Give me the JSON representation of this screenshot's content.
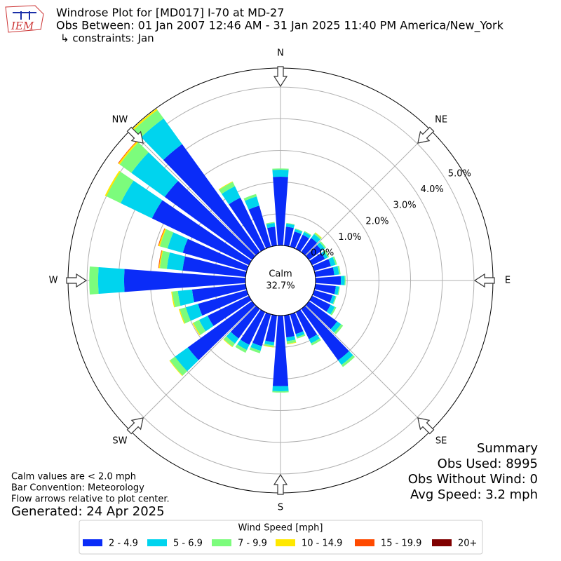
{
  "chart_data": {
    "type": "windrose",
    "title": "Windrose Plot for [MD017] I-70 at MD-27",
    "subtitle": "Obs Between: 01 Jan 2007 12:46 AM - 31 Jan 2025 11:40 PM America/New_York",
    "constraints": "↳ constraints: Jan",
    "compass_labels": [
      "N",
      "NE",
      "E",
      "SE",
      "S",
      "SW",
      "W",
      "NW"
    ],
    "x": [
      0,
      10,
      20,
      30,
      40,
      50,
      60,
      70,
      80,
      90,
      100,
      110,
      120,
      130,
      140,
      150,
      160,
      170,
      180,
      190,
      200,
      210,
      220,
      230,
      240,
      250,
      260,
      270,
      280,
      290,
      300,
      310,
      320,
      330,
      340,
      350
    ],
    "rlim": [
      0,
      5.6
    ],
    "rticks": [
      {
        "value": 0,
        "label": "0.0%"
      },
      {
        "value": 1,
        "label": "1.0%"
      },
      {
        "value": 2,
        "label": "2.0%"
      },
      {
        "value": 3,
        "label": "3.0%"
      },
      {
        "value": 4,
        "label": "4.0%"
      },
      {
        "value": 5,
        "label": "5.0%"
      }
    ],
    "calm": {
      "label": "Calm",
      "value": 32.7,
      "value_label": "32.7%"
    },
    "legend_title": "Wind Speed [mph]",
    "series": [
      {
        "name": "2 - 4.9",
        "color": "#0a2cf8",
        "values": [
          2.17,
          0.6,
          0.5,
          0.5,
          0.55,
          0.5,
          0.45,
          0.55,
          0.6,
          0.8,
          0.65,
          0.6,
          0.65,
          1.1,
          2.0,
          0.95,
          0.65,
          0.7,
          2.23,
          0.85,
          1.05,
          1.15,
          1.15,
          2.5,
          1.45,
          1.6,
          1.7,
          3.83,
          2.0,
          2.1,
          3.4,
          3.4,
          4.2,
          1.8,
          1.35,
          0.6
        ]
      },
      {
        "name": "5 - 6.9",
        "color": "#00d4ee",
        "values": [
          0.22,
          0.1,
          0.08,
          0.1,
          0.15,
          0.12,
          0.1,
          0.15,
          0.15,
          0.12,
          0.1,
          0.1,
          0.15,
          0.15,
          0.18,
          0.15,
          0.1,
          0.12,
          0.16,
          0.1,
          0.15,
          0.18,
          0.2,
          0.5,
          0.3,
          0.4,
          0.45,
          0.82,
          0.5,
          0.5,
          1.1,
          1.3,
          1.0,
          0.4,
          0.3,
          0.12
        ]
      },
      {
        "name": "7 - 9.9",
        "color": "#7cfc7c",
        "values": [
          0.04,
          0.02,
          0.02,
          0.03,
          0.05,
          0.05,
          0.05,
          0.05,
          0.05,
          0.03,
          0.03,
          0.03,
          0.05,
          0.08,
          0.08,
          0.07,
          0.05,
          0.08,
          0.04,
          0.05,
          0.08,
          0.1,
          0.12,
          0.2,
          0.2,
          0.2,
          0.18,
          0.28,
          0.22,
          0.25,
          0.5,
          0.45,
          0.33,
          0.15,
          0.08,
          0.03
        ]
      },
      {
        "name": "10 - 14.9",
        "color": "#ffe800",
        "values": [
          0,
          0,
          0,
          0,
          0.02,
          0,
          0,
          0,
          0,
          0,
          0,
          0,
          0,
          0,
          0,
          0,
          0,
          0.02,
          0,
          0.02,
          0,
          0,
          0.02,
          0.02,
          0.03,
          0.03,
          0.03,
          0,
          0.03,
          0.04,
          0.05,
          0.05,
          0.05,
          0.02,
          0,
          0
        ]
      },
      {
        "name": "15 - 19.9",
        "color": "#ff4a00",
        "values": [
          0,
          0,
          0,
          0,
          0,
          0,
          0,
          0,
          0,
          0,
          0,
          0,
          0,
          0,
          0,
          0,
          0,
          0,
          0,
          0,
          0,
          0,
          0,
          0,
          0,
          0,
          0,
          0,
          0.02,
          0.02,
          0,
          0.02,
          0,
          0,
          0,
          0
        ]
      },
      {
        "name": "20+",
        "color": "#800000",
        "values": [
          0,
          0,
          0,
          0,
          0,
          0,
          0,
          0,
          0,
          0,
          0,
          0,
          0,
          0,
          0,
          0,
          0,
          0,
          0,
          0,
          0,
          0,
          0,
          0,
          0,
          0,
          0,
          0,
          0,
          0,
          0,
          0,
          0,
          0,
          0,
          0
        ]
      }
    ],
    "notes": [
      "Calm values are < 2.0 mph",
      "Bar Convention: Meteorology",
      "Flow arrows relative to plot center."
    ],
    "generated": "Generated: 24 Apr 2025",
    "summary": [
      "Summary",
      "Obs Used: 8995",
      "Obs Without Wind: 0",
      "Avg Speed: 3.2 mph"
    ]
  }
}
